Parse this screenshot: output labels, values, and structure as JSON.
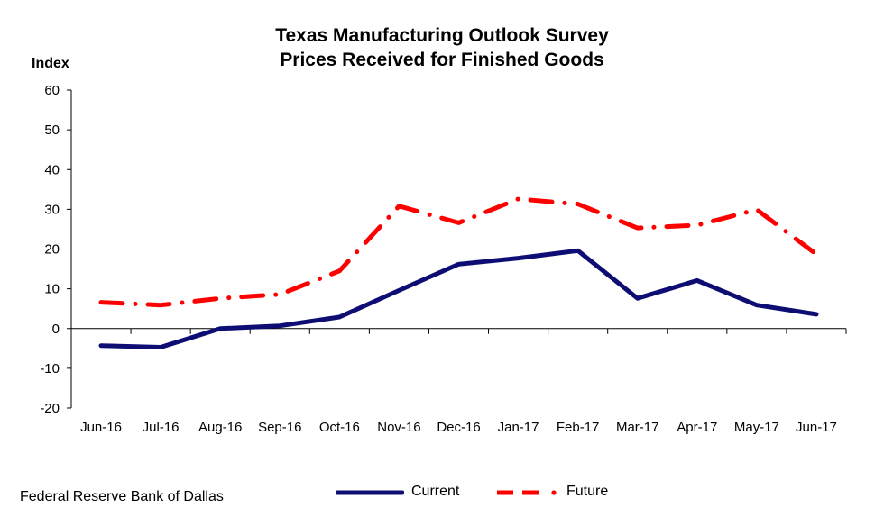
{
  "chart_data": {
    "type": "line",
    "title": [
      "Texas Manufacturing Outlook  Survey",
      "Prices Received for Finished Goods"
    ],
    "ylabel": "Index",
    "xlabel": "",
    "categories": [
      "Jun-16",
      "Jul-16",
      "Aug-16",
      "Sep-16",
      "Oct-16",
      "Nov-16",
      "Dec-16",
      "Jan-17",
      "Feb-17",
      "Mar-17",
      "Apr-17",
      "May-17",
      "Jun-17"
    ],
    "ylim": [
      -20,
      60
    ],
    "yticks": [
      -20,
      -10,
      0,
      10,
      20,
      30,
      40,
      50,
      60
    ],
    "grid": false,
    "legend_position": "bottom",
    "series": [
      {
        "name": "Current",
        "color": "#0d0d73",
        "style": "solid",
        "values": [
          -4.3,
          -4.7,
          0.0,
          0.7,
          2.9,
          9.6,
          16.2,
          17.7,
          19.6,
          7.6,
          12.1,
          5.9,
          3.6
        ]
      },
      {
        "name": "Future",
        "color": "#ff0000",
        "style": "dashed",
        "values": [
          6.6,
          5.9,
          7.6,
          8.6,
          14.5,
          30.8,
          26.6,
          32.6,
          31.3,
          25.3,
          26.0,
          29.9,
          18.7
        ]
      }
    ]
  },
  "footer": {
    "source": "Federal Reserve Bank of Dallas"
  }
}
